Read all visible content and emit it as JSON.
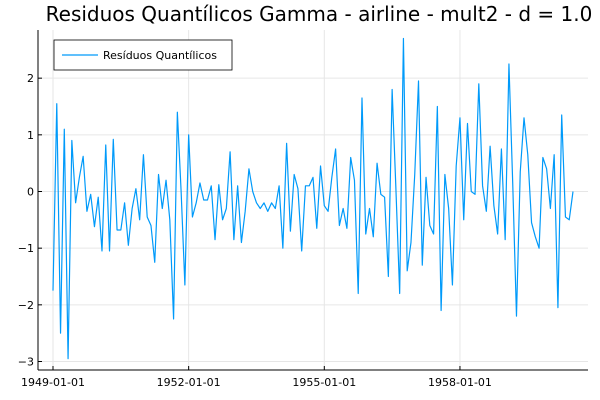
{
  "chart_data": {
    "type": "line",
    "title": "Residuos Quantílicos Gamma - airline - mult2 - d = 1.0",
    "xlabel": "",
    "ylabel": "",
    "x_start": "1949-01",
    "x_step": "month",
    "x_ticks": [
      "1949-01-01",
      "1952-01-01",
      "1955-01-01",
      "1958-01-01"
    ],
    "ylim": [
      -3.15,
      2.85
    ],
    "y_ticks": [
      -3,
      -2,
      -1,
      0,
      1,
      2
    ],
    "grid": true,
    "legend_position": "top-left",
    "series": [
      {
        "name": "Resíduos Quantílicos",
        "color": "#009AFA",
        "values": [
          -1.75,
          1.55,
          -2.5,
          1.1,
          -2.95,
          0.9,
          -0.2,
          0.25,
          0.62,
          -0.35,
          -0.05,
          -0.62,
          -0.1,
          -1.05,
          0.82,
          -1.05,
          0.92,
          -0.68,
          -0.68,
          -0.2,
          -0.95,
          -0.3,
          0.05,
          -0.5,
          0.65,
          -0.45,
          -0.6,
          -1.25,
          0.3,
          -0.3,
          0.2,
          -0.5,
          -2.25,
          1.4,
          0.0,
          -1.65,
          1.0,
          -0.45,
          -0.2,
          0.15,
          -0.15,
          -0.15,
          0.1,
          -0.85,
          0.12,
          -0.5,
          -0.3,
          0.7,
          -0.85,
          0.1,
          -0.9,
          -0.35,
          0.4,
          0.0,
          -0.2,
          -0.3,
          -0.2,
          -0.35,
          -0.2,
          -0.3,
          0.1,
          -1.0,
          0.85,
          -0.7,
          0.3,
          0.05,
          -1.05,
          0.1,
          0.1,
          0.25,
          -0.65,
          0.45,
          -0.25,
          -0.35,
          0.25,
          0.75,
          -0.6,
          -0.3,
          -0.65,
          0.6,
          0.2,
          -1.8,
          1.65,
          -0.75,
          -0.3,
          -0.8,
          0.5,
          -0.05,
          -0.1,
          -1.5,
          1.8,
          0.05,
          -1.8,
          2.7,
          -1.4,
          -0.9,
          0.3,
          1.95,
          -1.3,
          0.25,
          -0.6,
          -0.75,
          1.5,
          -2.1,
          0.3,
          -0.3,
          -1.65,
          0.45,
          1.3,
          -0.5,
          1.2,
          0.0,
          -0.05,
          1.9,
          0.1,
          -0.35,
          0.8,
          -0.25,
          -0.75,
          0.75,
          -0.85,
          2.25,
          0.15,
          -2.2,
          0.35,
          1.3,
          0.65,
          -0.55,
          -0.8,
          -1.0,
          0.6,
          0.4,
          -0.3,
          0.65,
          -2.05,
          1.35,
          -0.45,
          -0.5,
          0.0
        ]
      }
    ]
  }
}
